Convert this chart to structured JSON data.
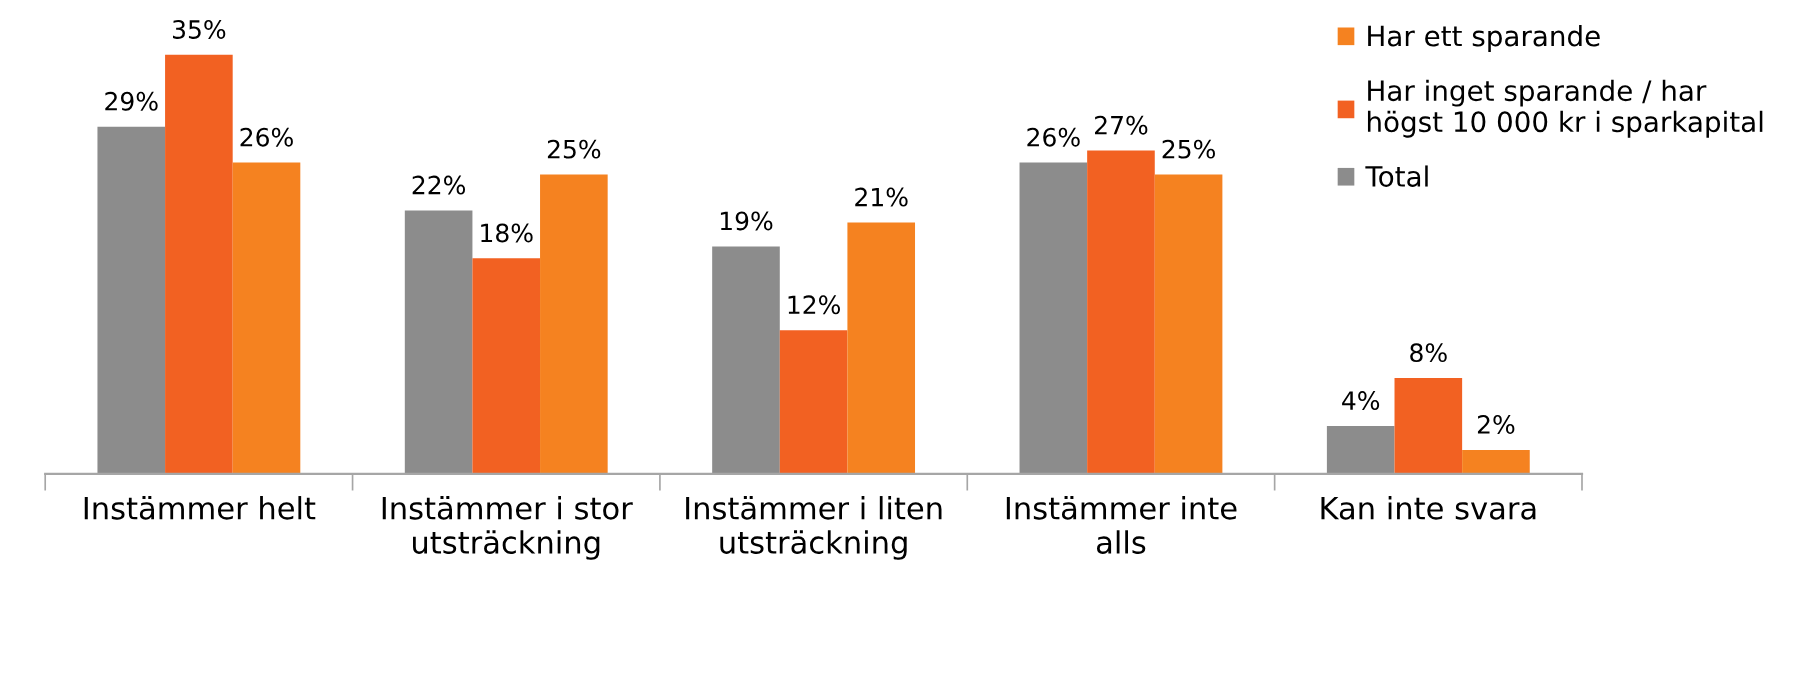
{
  "chart_data": {
    "type": "bar",
    "categories": [
      "Instämmer helt",
      "Instämmer i stor\nutsträckning",
      "Instämmer i liten\nutsträckning",
      "Instämmer inte\nalls",
      "Kan inte svara"
    ],
    "series": [
      {
        "name": "Total",
        "color": "#8c8c8c",
        "values": [
          29,
          22,
          19,
          26,
          4
        ],
        "value_labels": [
          "29%",
          "22%",
          "19%",
          "26%",
          "4%"
        ]
      },
      {
        "name": "Har inget sparande / har\nhögst 10 000 kr i sparkapital",
        "color": "#f26122",
        "values": [
          35,
          18,
          12,
          27,
          8
        ],
        "value_labels": [
          "35%",
          "18%",
          "12%",
          "27%",
          "8%"
        ]
      },
      {
        "name": "Har ett sparande",
        "color": "#f58220",
        "values": [
          26,
          25,
          21,
          25,
          2
        ],
        "value_labels": [
          "26%",
          "25%",
          "21%",
          "25%",
          "2%"
        ]
      }
    ],
    "legend": "top right",
    "grid": false
  }
}
